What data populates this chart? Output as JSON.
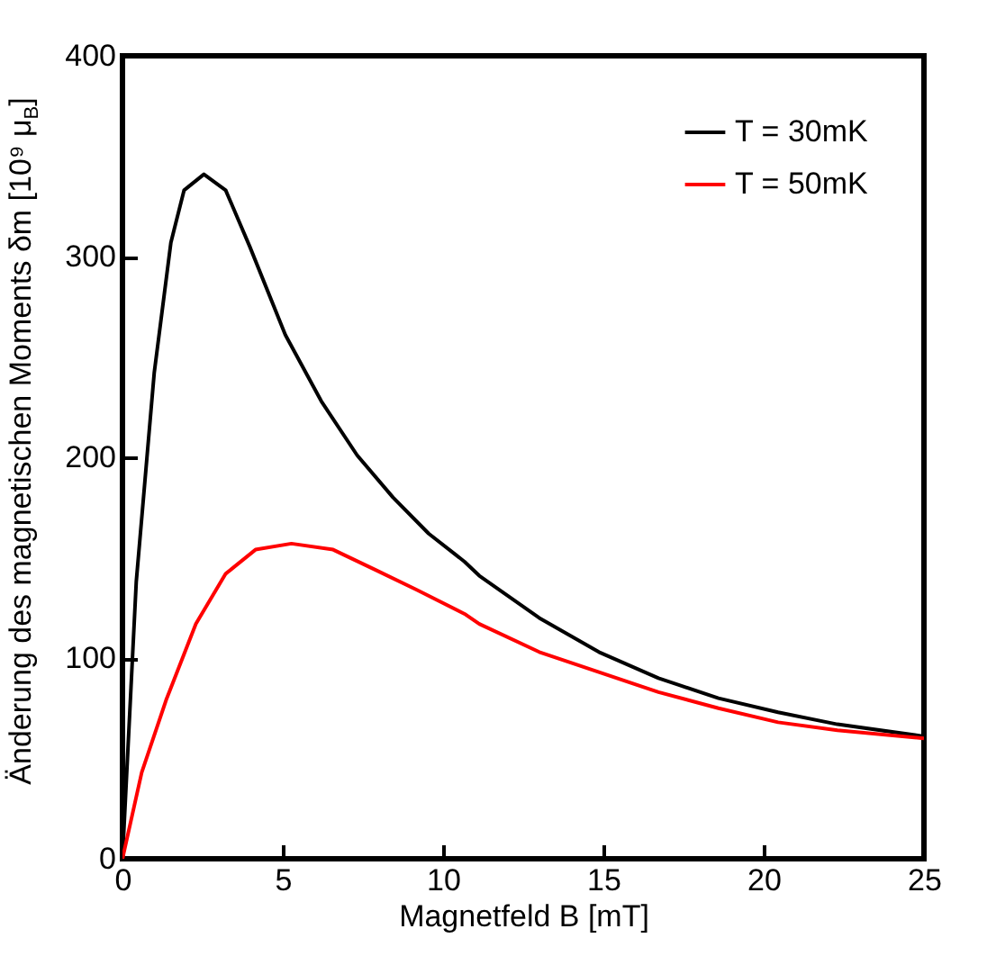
{
  "chart_data": {
    "type": "line",
    "xlabel": "Magnetfeld B [mT]",
    "ylabel": "Änderung des magnetischen Moments δm [10⁹ μ$_{B}$]",
    "xlim": [
      0,
      25
    ],
    "ylim": [
      0,
      400
    ],
    "xticks": [
      0,
      5,
      10,
      15,
      20,
      25
    ],
    "yticks": [
      0,
      100,
      200,
      300,
      400
    ],
    "grid": false,
    "legend": "top right",
    "line_style": "solid",
    "marker": "none",
    "series": [
      {
        "name": "T = 30mK",
        "color": "#000000",
        "x": [
          0,
          0.43,
          0.99,
          1.51,
          1.92,
          2.54,
          3.22,
          3.97,
          5.08,
          6.2,
          7.32,
          8.44,
          9.55,
          10.67,
          11.13,
          13.0,
          14.86,
          16.72,
          18.59,
          20.45,
          22.3,
          25
        ],
        "values": [
          0,
          138,
          242,
          307,
          333,
          341,
          333,
          305,
          261,
          228,
          201,
          180,
          162,
          148,
          141,
          120,
          103,
          90,
          80,
          73,
          67,
          61
        ]
      },
      {
        "name": "T = 50mK",
        "color": "#ff0000",
        "x": [
          0,
          0.6,
          1.36,
          2.29,
          3.22,
          4.15,
          5.27,
          6.57,
          7.88,
          9.18,
          10.67,
          11.13,
          13.0,
          14.86,
          16.72,
          18.59,
          20.45,
          22.3,
          25
        ],
        "values": [
          0,
          43,
          79,
          117,
          142,
          154,
          157,
          154,
          144,
          134,
          122,
          117,
          103,
          93,
          83,
          75,
          68,
          64,
          60
        ]
      }
    ]
  }
}
